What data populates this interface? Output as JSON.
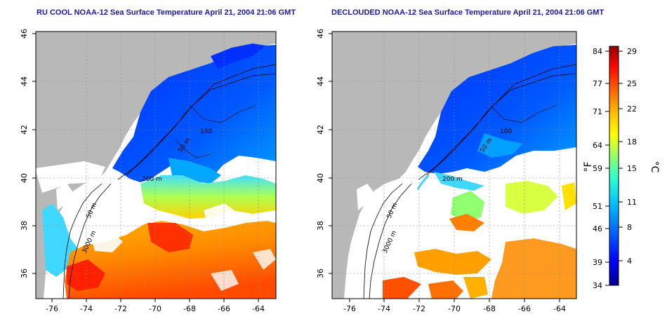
{
  "panels": [
    {
      "title": "RU COOL NOAA-12 Sea Surface Temperature April 21, 2004 21:06 GMT",
      "x_ticks": [
        "-76",
        "-74",
        "-72",
        "-70",
        "-68",
        "-66",
        "-64"
      ],
      "y_ticks": [
        "46",
        "44",
        "42",
        "40",
        "38",
        "36"
      ],
      "contour_labels": [
        "100",
        "50 m",
        "200 m",
        "50 m",
        "3000 m"
      ]
    },
    {
      "title": "DECLOUDED NOAA-12 Sea Surface Temperature April 21, 2004 21:06 GMT",
      "x_ticks": [
        "-76",
        "-74",
        "-72",
        "-70",
        "-68",
        "-66",
        "-64"
      ],
      "y_ticks": [
        "46",
        "44",
        "42",
        "40",
        "38",
        "36"
      ],
      "contour_labels": [
        "100",
        "50 m",
        "200 m",
        "50 m",
        "3000 m"
      ]
    }
  ],
  "colorbar": {
    "fahrenheit_label": "°F",
    "celsius_label": "°C",
    "fahrenheit_ticks": [
      "84",
      "77",
      "71",
      "64",
      "59",
      "51",
      "46",
      "39",
      "34"
    ],
    "celsius_ticks": [
      "29",
      "25",
      "22",
      "18",
      "15",
      "11",
      "8",
      "4"
    ],
    "colors": [
      "#00008f",
      "#0000ff",
      "#0060ff",
      "#00bfff",
      "#30ffcf",
      "#9fff60",
      "#ffff00",
      "#ffbf00",
      "#ff6000",
      "#ff0000",
      "#8f0000"
    ]
  },
  "colors": {
    "land": "#b8b8b8",
    "cloud": "#ffffff",
    "title": "#1a1aa0"
  }
}
